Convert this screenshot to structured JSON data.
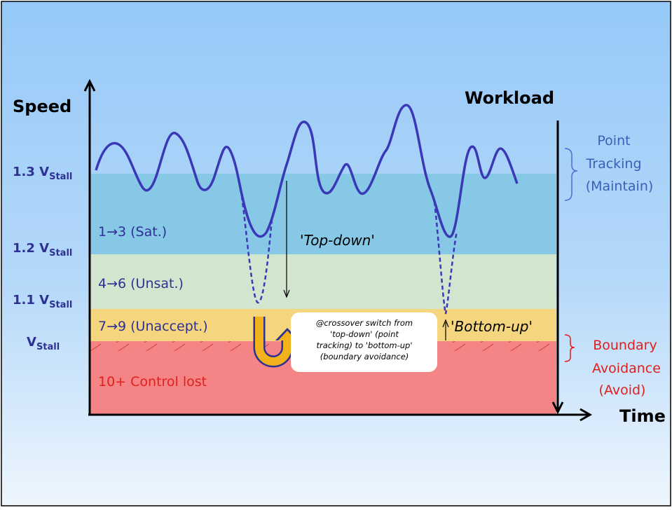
{
  "axes": {
    "y_label": "Speed",
    "x_label": "Time",
    "workload_label": "Workload"
  },
  "speed_levels": [
    {
      "base": "1.3 V",
      "sub": "Stall"
    },
    {
      "base": "1.2 V",
      "sub": "Stall"
    },
    {
      "base": "1.1 V",
      "sub": "Stall"
    },
    {
      "base": "V",
      "sub": "Stall"
    }
  ],
  "bands": [
    {
      "label": "1→3 (Sat.)",
      "color": "#86c8e6"
    },
    {
      "label": "4→6 (Unsat.)",
      "color": "#d2e6cf"
    },
    {
      "label": "7→9 (Unaccept.)",
      "color": "#f5d57e"
    },
    {
      "label": "10+ Control lost",
      "color": "#f58486"
    }
  ],
  "annotations": {
    "top_down": "'Top-down'",
    "bottom_up": "'Bottom-up'",
    "crossover_lines": [
      "@crossover switch from",
      "'top-down' (point",
      "tracking) to 'bottom-up'",
      "(boundary avoidance)"
    ]
  },
  "right_labels": {
    "point_tracking": [
      "Point",
      "Tracking",
      "(Maintain)"
    ],
    "boundary_avoidance": [
      "Boundary",
      "Avoidance",
      "(Avoid)"
    ]
  },
  "colors": {
    "curve": "#3b38b8",
    "text_blue": "#2e3192",
    "bracket_blue": "#4a6fd0",
    "red": "#e0201c",
    "arrow_orange": "#f2b21b",
    "background_top": "#96c9f8",
    "background_bottom": "#e8f3fd"
  }
}
